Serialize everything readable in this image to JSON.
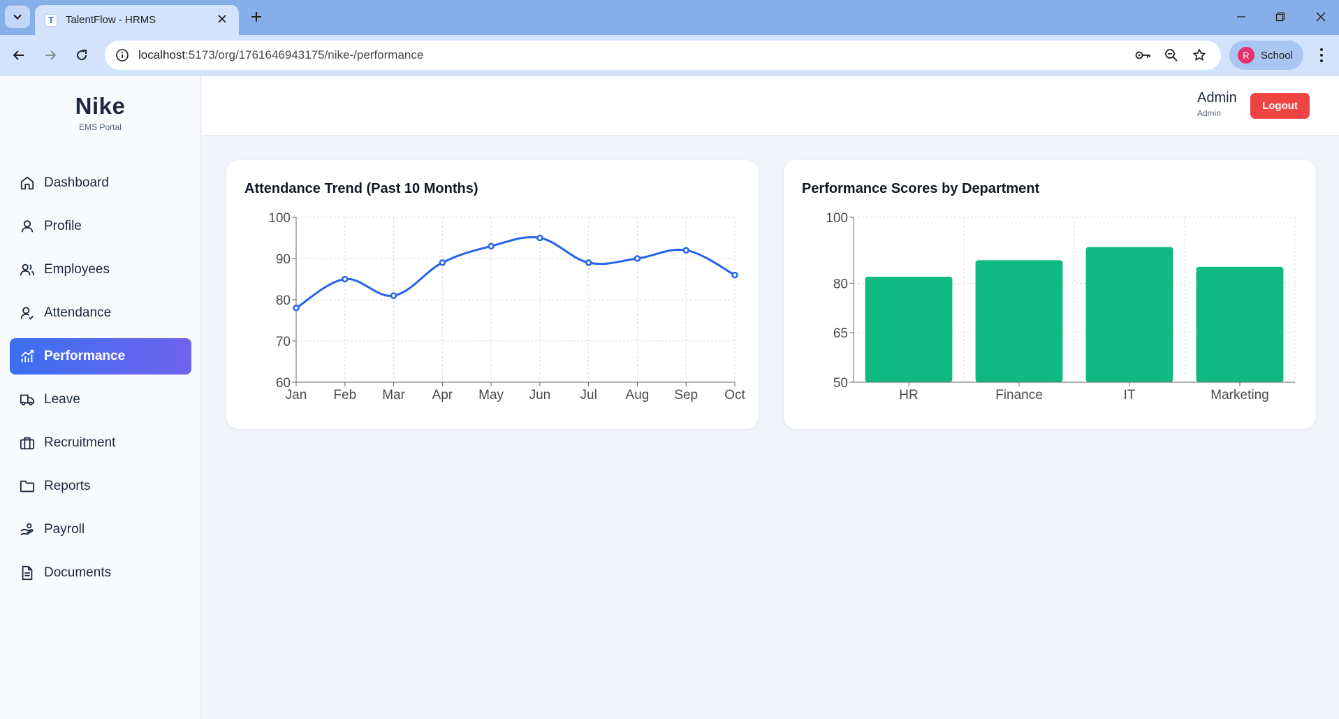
{
  "browser": {
    "tab_title": "TalentFlow - HRMS",
    "favicon_letter": "T",
    "url_host": "localhost",
    "url_path": ":5173/org/1761646943175/nike-/performance",
    "profile_initial": "R",
    "profile_name": "School"
  },
  "app": {
    "brand_name": "Nike",
    "brand_subtitle": "EMS Portal",
    "nav": [
      {
        "label": "Dashboard",
        "icon": "home-icon"
      },
      {
        "label": "Profile",
        "icon": "user-icon"
      },
      {
        "label": "Employees",
        "icon": "users-icon"
      },
      {
        "label": "Attendance",
        "icon": "user-check-icon"
      },
      {
        "label": "Performance",
        "icon": "chart-icon",
        "active": true
      },
      {
        "label": "Leave",
        "icon": "truck-icon"
      },
      {
        "label": "Recruitment",
        "icon": "briefcase-icon"
      },
      {
        "label": "Reports",
        "icon": "folder-icon"
      },
      {
        "label": "Payroll",
        "icon": "hand-coins-icon"
      },
      {
        "label": "Documents",
        "icon": "document-icon"
      }
    ],
    "header": {
      "user_name": "Admin",
      "user_role": "Admin",
      "logout_label": "Logout"
    },
    "colors": {
      "accent_gradient_start": "#3b6ff0",
      "accent_gradient_end": "#6f63ee",
      "line_color": "#2563eb",
      "bar_color": "#10b981",
      "logout_color": "#ef4444"
    }
  },
  "chart_data": [
    {
      "type": "line",
      "title": "Attendance Trend (Past 10 Months)",
      "categories": [
        "Jan",
        "Feb",
        "Mar",
        "Apr",
        "May",
        "Jun",
        "Jul",
        "Aug",
        "Sep",
        "Oct"
      ],
      "values": [
        78,
        85,
        81,
        89,
        93,
        95,
        89,
        90,
        92,
        86
      ],
      "yticks": [
        60,
        70,
        80,
        90,
        100
      ],
      "ylim": [
        60,
        100
      ],
      "grid": true,
      "smooth": true
    },
    {
      "type": "bar",
      "title": "Performance Scores by Department",
      "categories": [
        "HR",
        "Finance",
        "IT",
        "Marketing"
      ],
      "values": [
        82,
        87,
        91,
        85
      ],
      "yticks": [
        50,
        65,
        80,
        100
      ],
      "ylim": [
        50,
        100
      ],
      "grid": true
    }
  ]
}
